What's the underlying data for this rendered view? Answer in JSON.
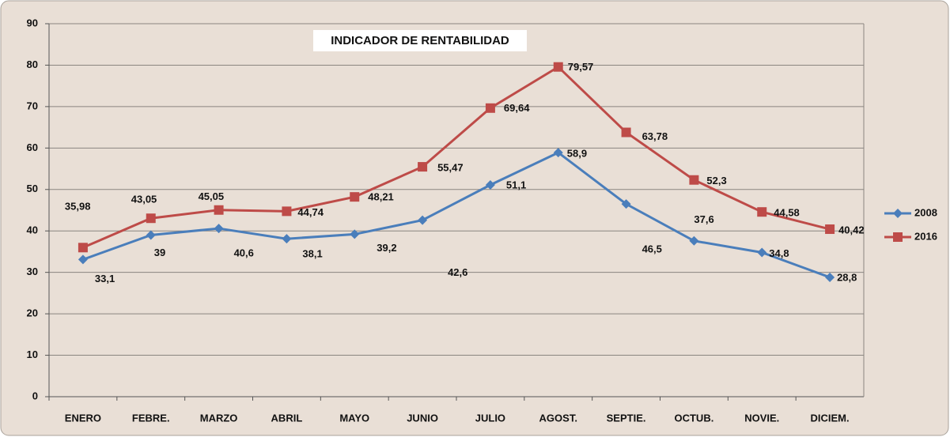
{
  "chart_data": {
    "type": "line",
    "title": "INDICADOR DE RENTABILIDAD",
    "categories": [
      "ENERO",
      "FEBRE.",
      "MARZO",
      "ABRIL",
      "MAYO",
      "JUNIO",
      "JULIO",
      "AGOST.",
      "SEPTIE.",
      "OCTUB.",
      "NOVIE.",
      "DICIEM."
    ],
    "series": [
      {
        "name": "2008",
        "color": "#4a7ebb",
        "marker": "diamond",
        "values": [
          33.1,
          39,
          40.6,
          38.1,
          39.2,
          42.6,
          51.1,
          58.9,
          46.5,
          37.6,
          34.8,
          28.8
        ],
        "value_labels": [
          "33,1",
          "39",
          "40,6",
          "38,1",
          "39,2",
          "42,6",
          "51,1",
          "58,9",
          "46,5",
          "37,6",
          "34,8",
          "28,8"
        ]
      },
      {
        "name": "2016",
        "color": "#be4b48",
        "marker": "square",
        "values": [
          35.98,
          43.05,
          45.05,
          44.74,
          48.21,
          55.47,
          69.64,
          79.57,
          63.78,
          52.3,
          44.58,
          40.42
        ],
        "value_labels": [
          "35,98",
          "43,05",
          "45,05",
          "44,74",
          "48,21",
          "55,47",
          "69,64",
          "79,57",
          "63,78",
          "52,3",
          "44,58",
          "40,42"
        ]
      }
    ],
    "ylim": [
      0,
      90
    ],
    "yticks": [
      0,
      10,
      20,
      30,
      40,
      50,
      60,
      70,
      80,
      90
    ],
    "grid": true,
    "legend": "right"
  }
}
